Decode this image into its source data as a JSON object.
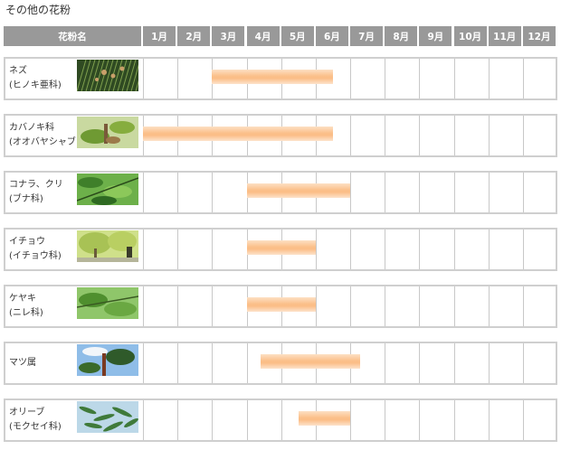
{
  "page": {
    "title": "その他の花粉"
  },
  "chart_data": {
    "type": "table",
    "header": {
      "name_label": "花粉名",
      "months": [
        "1月",
        "2月",
        "3月",
        "4月",
        "5月",
        "6月",
        "7月",
        "8月",
        "9月",
        "10月",
        "11月",
        "12月"
      ]
    },
    "rows": [
      {
        "line1": "ネズ",
        "line2": "(ヒノキ亜科)",
        "thumb": "pine-branch",
        "start_month": 3.0,
        "end_month": 6.5
      },
      {
        "line1": "カバノキ科",
        "line2": "(オオバヤシャブシ)",
        "thumb": "leaf-buds",
        "start_month": 1.0,
        "end_month": 6.5
      },
      {
        "line1": "コナラ、クリ",
        "line2": "(ブナ科)",
        "thumb": "green-leaves",
        "start_month": 4.0,
        "end_month": 7.0
      },
      {
        "line1": "イチョウ",
        "line2": "(イチョウ科)",
        "thumb": "ginkgo-trees",
        "start_month": 4.0,
        "end_month": 6.0
      },
      {
        "line1": "ケヤキ",
        "line2": "(ニレ科)",
        "thumb": "zelkova-leaves",
        "start_month": 4.0,
        "end_month": 6.0
      },
      {
        "line1": "マツ属",
        "line2": "",
        "thumb": "pine-tree-sky",
        "start_month": 4.4,
        "end_month": 7.3
      },
      {
        "line1": "オリーブ",
        "line2": "(モクセイ科)",
        "thumb": "olive-leaves",
        "start_month": 5.5,
        "end_month": 7.0
      }
    ],
    "colors": {
      "header_bg": "#999999",
      "bar": "#fbbd86",
      "grid_line": "#cfcfcf"
    }
  }
}
